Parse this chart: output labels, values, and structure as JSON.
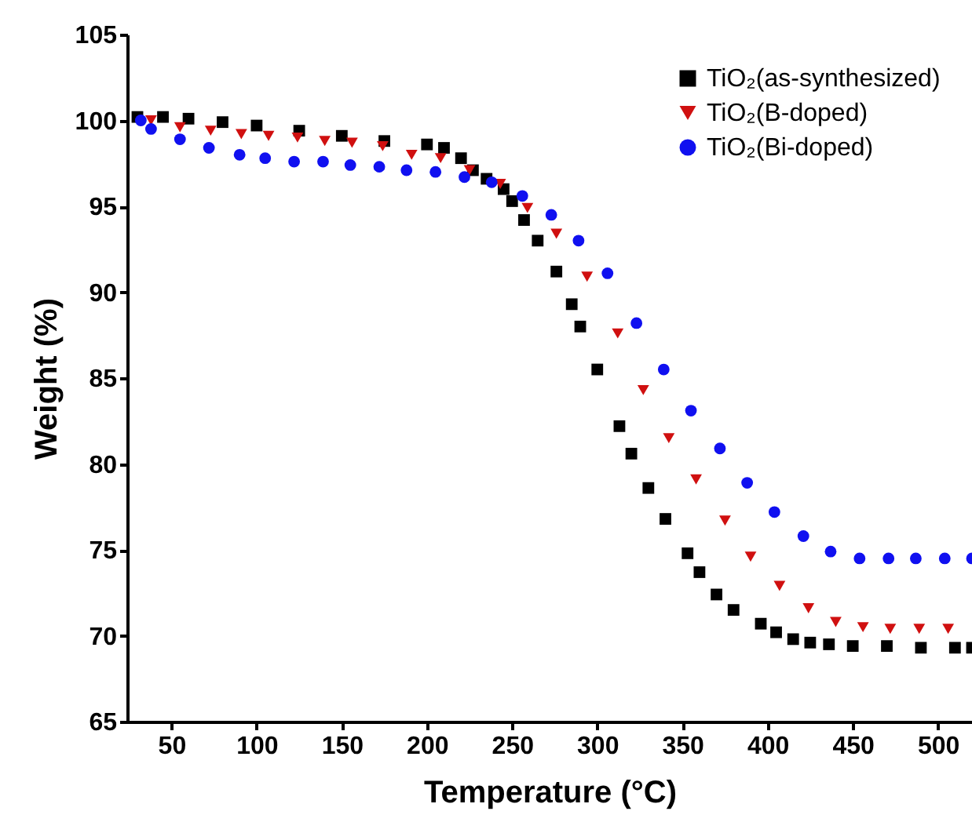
{
  "chart_data": {
    "type": "scatter",
    "xlabel": "Temperature (°C)",
    "ylabel": "Weight (%)",
    "xlim": [
      24,
      520
    ],
    "ylim": [
      65,
      105
    ],
    "xticks": [
      50,
      100,
      150,
      200,
      250,
      300,
      350,
      400,
      450,
      500
    ],
    "yticks": [
      65,
      70,
      75,
      80,
      85,
      90,
      95,
      100,
      105
    ],
    "grid": false,
    "legend": "top right",
    "series": [
      {
        "name": "TiO₂(as-synthesized)",
        "color": "#000000",
        "marker": "square",
        "x": [
          30,
          45,
          60,
          80,
          100,
          125,
          150,
          175,
          200,
          210,
          220,
          227,
          235,
          245,
          250,
          257,
          265,
          276,
          285,
          290,
          300,
          313,
          320,
          330,
          340,
          353,
          360,
          370,
          380,
          396,
          405,
          415,
          425,
          436,
          450,
          470,
          490,
          510,
          520
        ],
        "values": [
          100.2,
          100.2,
          100.1,
          99.9,
          99.7,
          99.4,
          99.1,
          98.8,
          98.6,
          98.4,
          97.8,
          97.1,
          96.6,
          96.0,
          95.3,
          94.2,
          93.0,
          91.2,
          89.3,
          88.0,
          85.5,
          82.2,
          80.6,
          78.6,
          76.8,
          74.8,
          73.7,
          72.4,
          71.5,
          70.7,
          70.2,
          69.8,
          69.6,
          69.5,
          69.4,
          69.4,
          69.3,
          69.3,
          69.3
        ]
      },
      {
        "name": "TiO₂(B-doped)",
        "color": "#d01010",
        "marker": "triangle-down",
        "x": [
          38,
          55,
          73,
          91,
          107,
          124,
          140,
          156,
          174,
          191,
          208,
          225,
          243,
          259,
          276,
          294,
          312,
          327,
          342,
          358,
          375,
          390,
          407,
          424,
          440,
          456,
          472,
          489,
          506
        ],
        "values": [
          100,
          99.6,
          99.4,
          99.2,
          99.1,
          99.0,
          98.8,
          98.7,
          98.5,
          98.0,
          97.8,
          97.1,
          96.3,
          94.9,
          93.4,
          90.9,
          87.6,
          84.3,
          81.5,
          79.1,
          76.7,
          74.6,
          72.9,
          71.6,
          70.8,
          70.5,
          70.4,
          70.4,
          70.4
        ]
      },
      {
        "name": "TiO₂(Bi-doped)",
        "color": "#1010f0",
        "marker": "circle",
        "x": [
          32,
          38,
          55,
          72,
          90,
          105,
          122,
          139,
          155,
          172,
          188,
          205,
          222,
          238,
          256,
          273,
          289,
          306,
          323,
          339,
          355,
          372,
          388,
          404,
          421,
          437,
          454,
          471,
          487,
          504,
          520
        ],
        "values": [
          100,
          99.5,
          98.9,
          98.4,
          98.0,
          97.8,
          97.6,
          97.6,
          97.4,
          97.3,
          97.1,
          97.0,
          96.7,
          96.4,
          95.6,
          94.5,
          93.0,
          91.1,
          88.2,
          85.5,
          83.1,
          80.9,
          78.9,
          77.2,
          75.8,
          74.9,
          74.5,
          74.5,
          74.5,
          74.5,
          74.5
        ]
      }
    ]
  }
}
